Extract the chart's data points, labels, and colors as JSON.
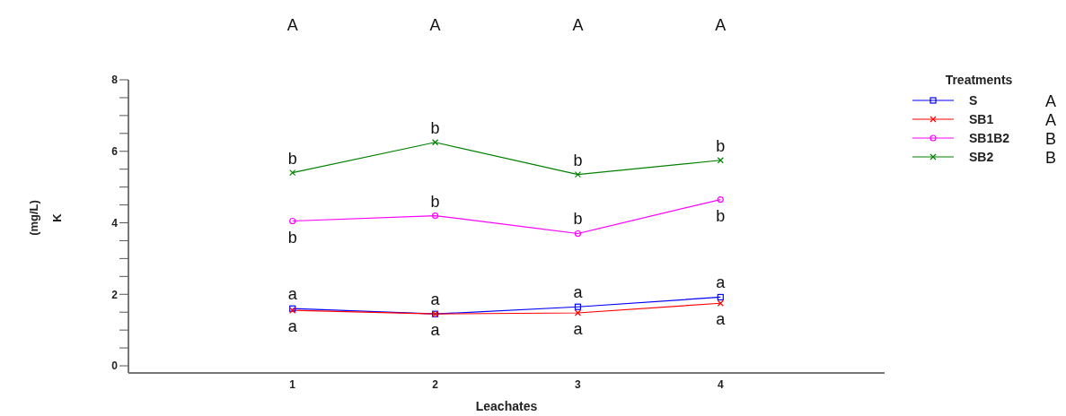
{
  "chart_data": {
    "type": "line",
    "xlabel": "Leachates",
    "ylabel": "(mg/L)\nK",
    "legend_title": "Treatments",
    "legend": "top right",
    "x": [
      1,
      2,
      3,
      4
    ],
    "xlim": [
      -0.15,
      5.15
    ],
    "xticks": [
      1,
      2,
      3,
      4
    ],
    "ylim": [
      -0.2,
      8
    ],
    "yticks": [
      0,
      {
        "value": 0.5,
        "label": null
      },
      {
        "value": 1,
        "label": null
      },
      {
        "value": 1.5,
        "label": null
      },
      2,
      {
        "value": 2.5,
        "label": null
      },
      {
        "value": 3,
        "label": null
      },
      {
        "value": 3.5,
        "label": null
      },
      4,
      {
        "value": 4.5,
        "label": null
      },
      {
        "value": 5,
        "label": null
      },
      {
        "value": 5.5,
        "label": null
      },
      6,
      {
        "value": 6.5,
        "label": null
      },
      {
        "value": 7,
        "label": null
      },
      {
        "value": 7.5,
        "label": null
      },
      8
    ],
    "grid": false,
    "series": [
      {
        "name": "S",
        "color": "#0000ff",
        "marker": "square",
        "values": [
          1.6,
          1.45,
          1.65,
          1.92
        ]
      },
      {
        "name": "SB1",
        "color": "#ff0000",
        "marker": "cross",
        "values": [
          1.55,
          1.45,
          1.48,
          1.75
        ]
      },
      {
        "name": "SB1B2",
        "color": "#ff00ff",
        "marker": "circle",
        "values": [
          4.05,
          4.2,
          3.7,
          4.65
        ]
      },
      {
        "name": "SB2",
        "color": "#008000",
        "marker": "cross",
        "values": [
          5.4,
          6.25,
          5.35,
          5.75
        ]
      }
    ],
    "annotations": [
      "A",
      "A",
      "B",
      "B",
      "A",
      "A",
      "A",
      "A",
      {
        "text": "b",
        "x": 1,
        "y": 5.4
      },
      {
        "text": "b",
        "x": 1,
        "y": 4.05
      },
      {
        "text": "a",
        "x": 1,
        "y": 1.6
      },
      {
        "text": "a",
        "x": 1,
        "y": 1.55
      },
      {
        "text": "b",
        "x": 2,
        "y": 6.25
      },
      {
        "text": "b",
        "x": 2,
        "y": 4.2
      },
      {
        "text": "a",
        "x": 2,
        "y": 1.45
      },
      {
        "text": "a",
        "x": 2,
        "y": 1.45
      },
      {
        "text": "b",
        "x": 3,
        "y": 5.35
      },
      {
        "text": "b",
        "x": 3,
        "y": 3.7
      },
      {
        "text": "a",
        "x": 3,
        "y": 1.65
      },
      {
        "text": "a",
        "x": 3,
        "y": 1.48
      },
      {
        "text": "b",
        "x": 4,
        "y": 5.75
      },
      {
        "text": "b",
        "x": 4,
        "y": 4.65
      },
      {
        "text": "a",
        "x": 4,
        "y": 1.92
      },
      {
        "text": "a",
        "x": 4,
        "y": 1.75
      }
    ]
  }
}
